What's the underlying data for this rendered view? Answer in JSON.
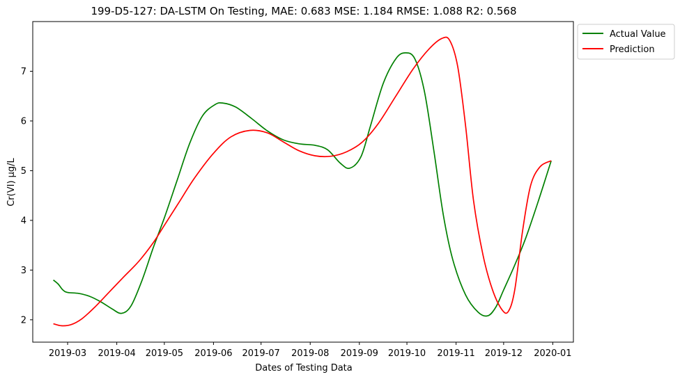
{
  "chart_data": {
    "type": "line",
    "title": "199-D5-127: DA-LSTM On Testing, MAE: 0.683 MSE: 1.184 RMSE: 1.088 R2: 0.568",
    "xlabel": "Dates of Testing Data",
    "ylabel": "Cr(VI) μg/L",
    "xlim": [
      "2019-02-07",
      "2020-01-14"
    ],
    "ylim": [
      1.55,
      8.0
    ],
    "x_ticks": [
      "2019-03",
      "2019-04",
      "2019-05",
      "2019-06",
      "2019-07",
      "2019-08",
      "2019-09",
      "2019-10",
      "2019-11",
      "2019-12",
      "2020-01"
    ],
    "y_ticks": [
      2,
      3,
      4,
      5,
      6,
      7
    ],
    "grid": false,
    "legend_position": "outside-top-right",
    "series": [
      {
        "name": "Actual Value",
        "color": "#008000",
        "points": [
          [
            "2019-02-20",
            2.8
          ],
          [
            "2019-02-23",
            2.72
          ],
          [
            "2019-02-26",
            2.6
          ],
          [
            "2019-03-01",
            2.55
          ],
          [
            "2019-03-08",
            2.53
          ],
          [
            "2019-03-15",
            2.47
          ],
          [
            "2019-03-22",
            2.36
          ],
          [
            "2019-03-29",
            2.22
          ],
          [
            "2019-04-04",
            2.13
          ],
          [
            "2019-04-10",
            2.28
          ],
          [
            "2019-04-17",
            2.8
          ],
          [
            "2019-04-24",
            3.45
          ],
          [
            "2019-05-01",
            4.05
          ],
          [
            "2019-05-09",
            4.8
          ],
          [
            "2019-05-17",
            5.55
          ],
          [
            "2019-05-25",
            6.1
          ],
          [
            "2019-06-02",
            6.33
          ],
          [
            "2019-06-07",
            6.36
          ],
          [
            "2019-06-15",
            6.28
          ],
          [
            "2019-06-25",
            6.05
          ],
          [
            "2019-07-05",
            5.8
          ],
          [
            "2019-07-15",
            5.62
          ],
          [
            "2019-07-25",
            5.54
          ],
          [
            "2019-08-04",
            5.51
          ],
          [
            "2019-08-12",
            5.42
          ],
          [
            "2019-08-20",
            5.15
          ],
          [
            "2019-08-26",
            5.05
          ],
          [
            "2019-09-02",
            5.28
          ],
          [
            "2019-09-08",
            5.9
          ],
          [
            "2019-09-16",
            6.75
          ],
          [
            "2019-09-24",
            7.25
          ],
          [
            "2019-09-30",
            7.37
          ],
          [
            "2019-10-06",
            7.25
          ],
          [
            "2019-10-12",
            6.6
          ],
          [
            "2019-10-18",
            5.4
          ],
          [
            "2019-10-24",
            4.1
          ],
          [
            "2019-10-30",
            3.2
          ],
          [
            "2019-11-07",
            2.5
          ],
          [
            "2019-11-15",
            2.15
          ],
          [
            "2019-11-21",
            2.08
          ],
          [
            "2019-11-26",
            2.25
          ],
          [
            "2019-12-01",
            2.6
          ],
          [
            "2019-12-08",
            3.1
          ],
          [
            "2019-12-15",
            3.65
          ],
          [
            "2019-12-23",
            4.4
          ],
          [
            "2019-12-31",
            5.2
          ]
        ]
      },
      {
        "name": "Prediction",
        "color": "#ff0000",
        "points": [
          [
            "2019-02-20",
            1.92
          ],
          [
            "2019-02-25",
            1.88
          ],
          [
            "2019-03-03",
            1.9
          ],
          [
            "2019-03-10",
            2.02
          ],
          [
            "2019-03-18",
            2.25
          ],
          [
            "2019-03-27",
            2.55
          ],
          [
            "2019-04-05",
            2.85
          ],
          [
            "2019-04-15",
            3.18
          ],
          [
            "2019-04-24",
            3.55
          ],
          [
            "2019-05-01",
            3.9
          ],
          [
            "2019-05-10",
            4.35
          ],
          [
            "2019-05-20",
            4.85
          ],
          [
            "2019-06-01",
            5.35
          ],
          [
            "2019-06-12",
            5.68
          ],
          [
            "2019-06-24",
            5.81
          ],
          [
            "2019-07-05",
            5.76
          ],
          [
            "2019-07-15",
            5.58
          ],
          [
            "2019-07-25",
            5.4
          ],
          [
            "2019-08-04",
            5.3
          ],
          [
            "2019-08-14",
            5.29
          ],
          [
            "2019-08-24",
            5.38
          ],
          [
            "2019-09-03",
            5.58
          ],
          [
            "2019-09-13",
            5.95
          ],
          [
            "2019-09-24",
            6.5
          ],
          [
            "2019-10-05",
            7.05
          ],
          [
            "2019-10-15",
            7.45
          ],
          [
            "2019-10-23",
            7.66
          ],
          [
            "2019-10-28",
            7.62
          ],
          [
            "2019-11-02",
            7.1
          ],
          [
            "2019-11-07",
            5.9
          ],
          [
            "2019-11-12",
            4.4
          ],
          [
            "2019-11-18",
            3.3
          ],
          [
            "2019-11-24",
            2.6
          ],
          [
            "2019-11-30",
            2.2
          ],
          [
            "2019-12-04",
            2.17
          ],
          [
            "2019-12-08",
            2.6
          ],
          [
            "2019-12-13",
            3.8
          ],
          [
            "2019-12-18",
            4.7
          ],
          [
            "2019-12-24",
            5.08
          ],
          [
            "2019-12-31",
            5.2
          ]
        ]
      }
    ]
  }
}
